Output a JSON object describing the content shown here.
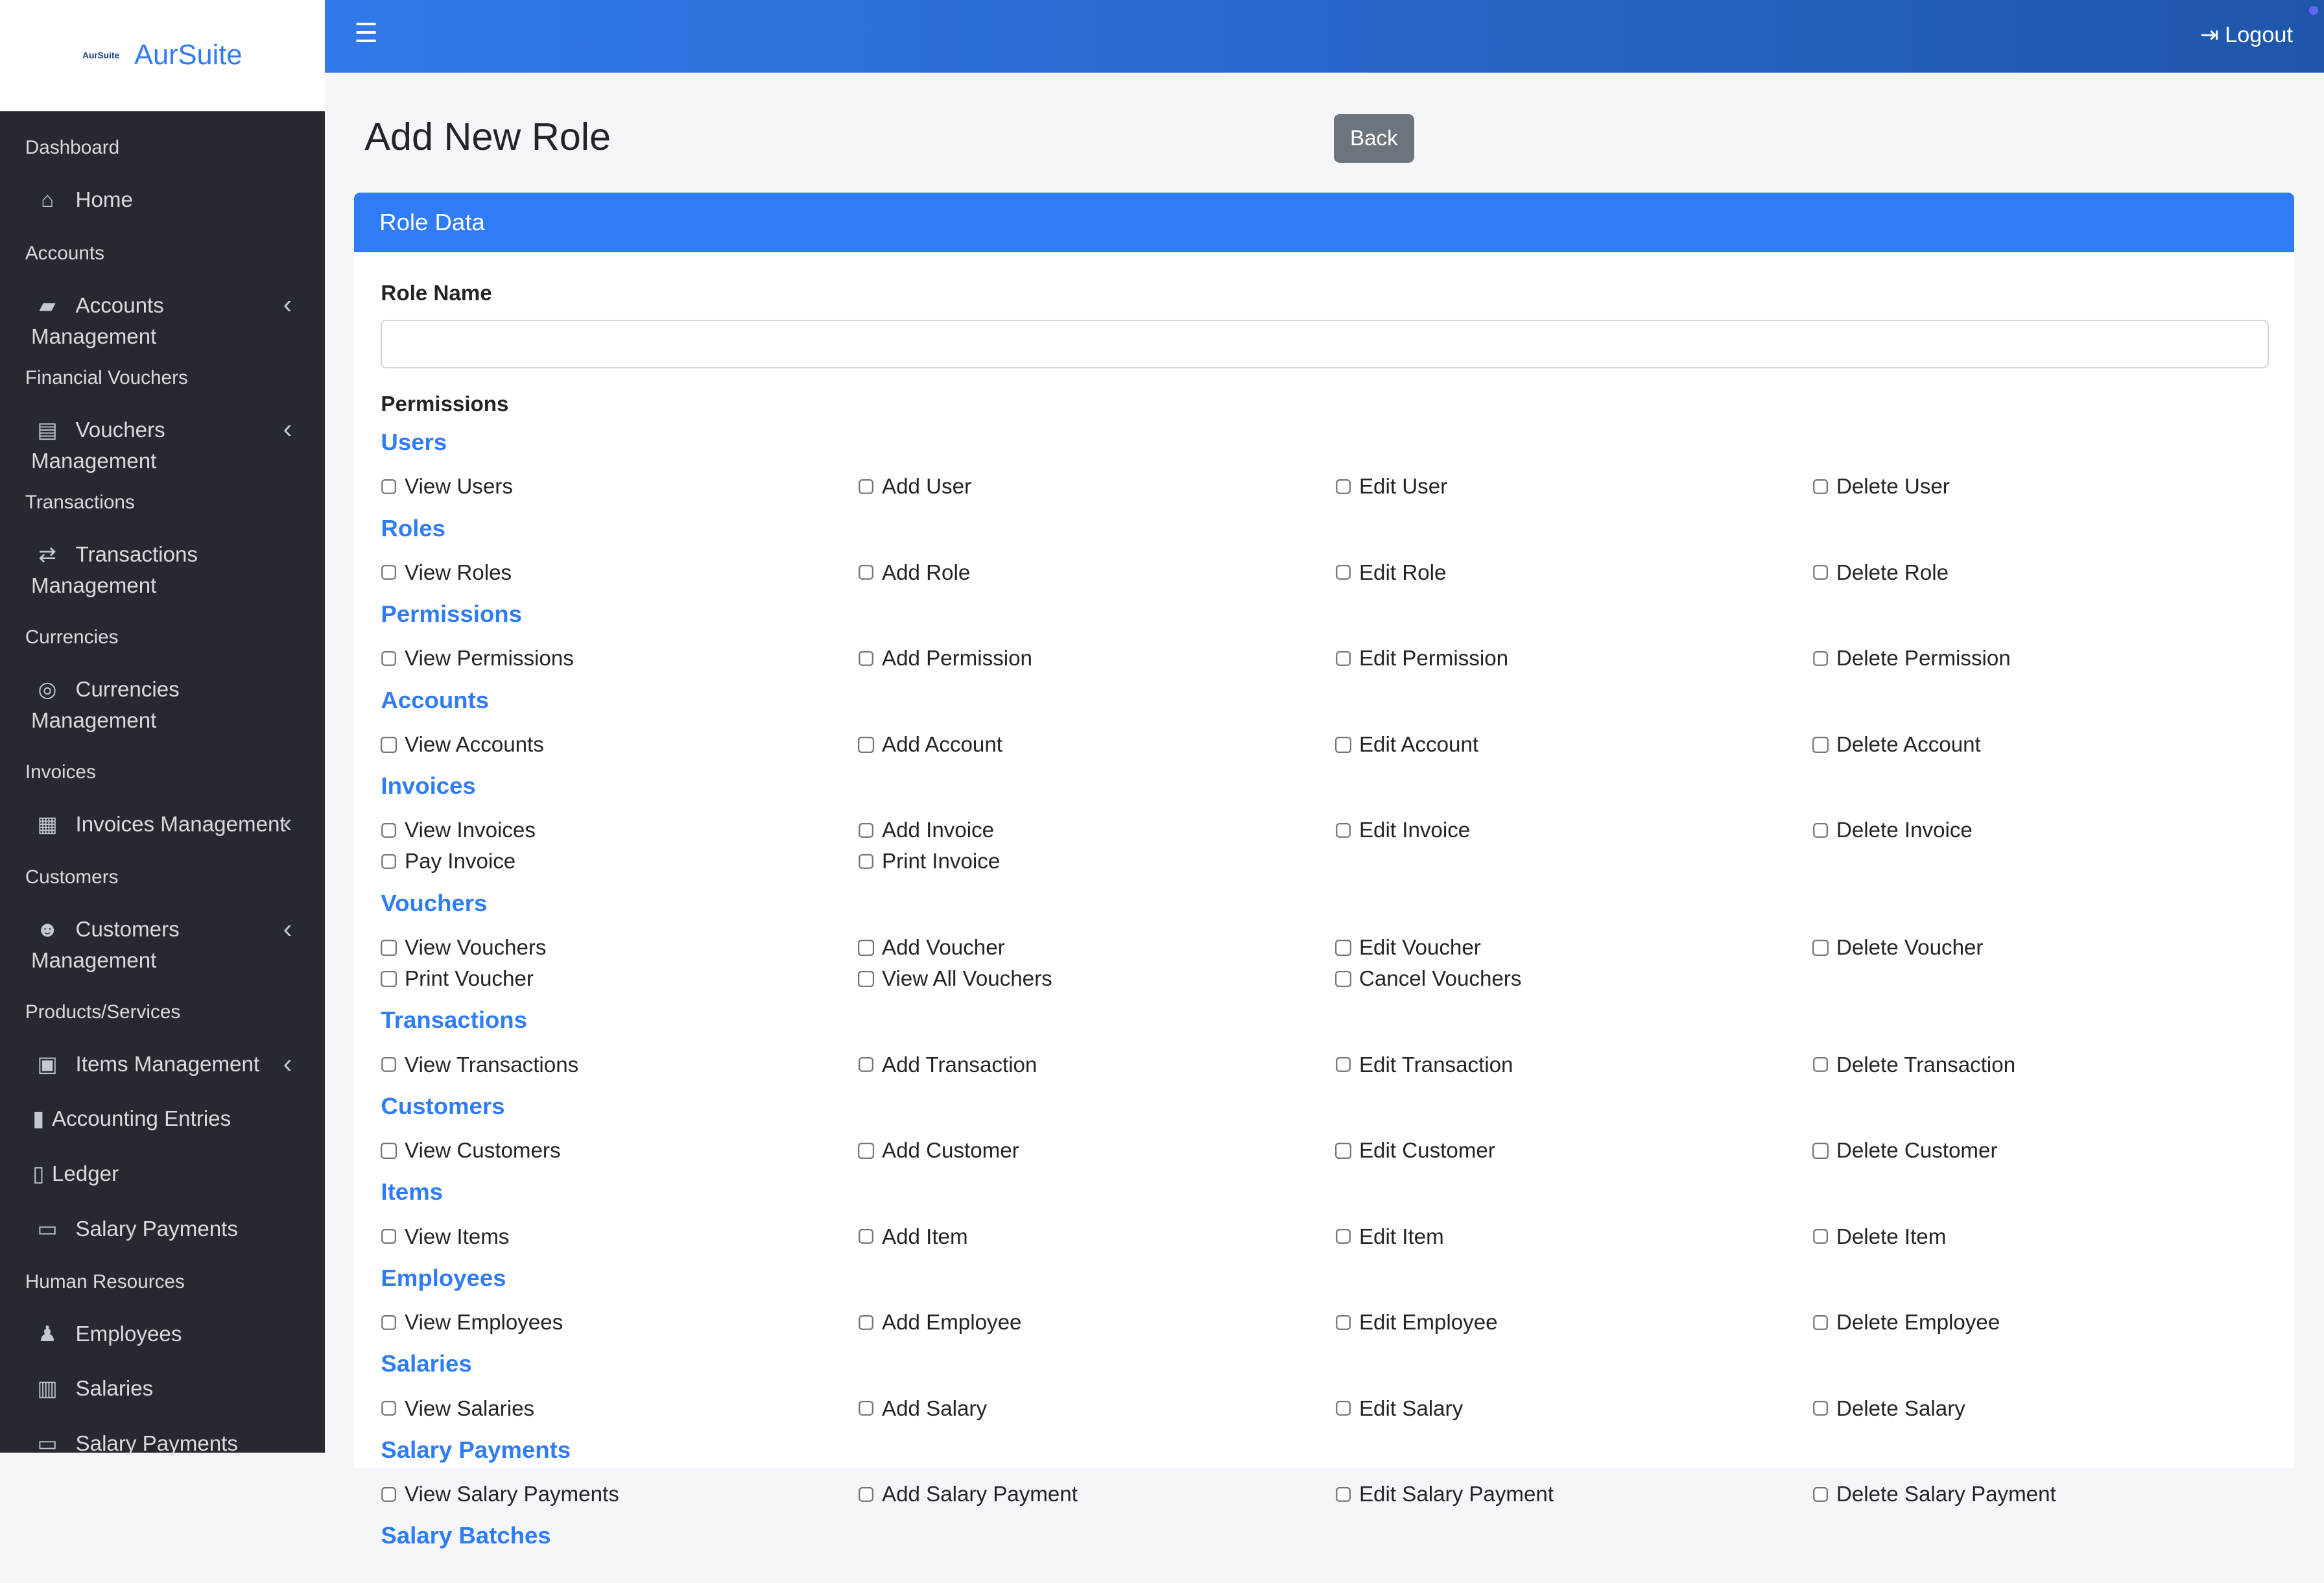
{
  "brand": {
    "logo_text": "AurSuite",
    "name": "AurSuite"
  },
  "colors": {
    "primary": "#2f7cf6",
    "sidebar": "#262a30",
    "back_button": "#6c757d"
  },
  "sidebar": [
    {
      "section": "Dashboard",
      "items": [
        {
          "label": "Home",
          "icon": "home-icon",
          "glyph": "⌂"
        }
      ]
    },
    {
      "section": "Accounts",
      "items": [
        {
          "label": "Accounts Management",
          "icon": "folder-open-icon",
          "glyph": "▰",
          "chevron": true
        }
      ]
    },
    {
      "section": "Financial Vouchers",
      "items": [
        {
          "label": "Vouchers Management",
          "icon": "file-icon",
          "glyph": "▤",
          "chevron": true
        }
      ]
    },
    {
      "section": "Transactions",
      "items": [
        {
          "label": "Transactions Management",
          "icon": "exchange-icon",
          "glyph": "⇄",
          "two": true
        }
      ]
    },
    {
      "section": "Currencies",
      "items": [
        {
          "label": "Currencies Management",
          "icon": "coins-icon",
          "glyph": "◎",
          "two": true
        }
      ]
    },
    {
      "section": "Invoices",
      "items": [
        {
          "label": "Invoices Management",
          "icon": "receipt-icon",
          "glyph": "▦",
          "chevron": true
        }
      ]
    },
    {
      "section": "Customers",
      "items": [
        {
          "label": "Customers Management",
          "icon": "users-icon",
          "glyph": "☻",
          "two": true,
          "chevron": true
        }
      ]
    },
    {
      "section": "Products/Services",
      "items": [
        {
          "label": "Items Management",
          "icon": "box-open-icon",
          "glyph": "▣",
          "chevron": true
        },
        {
          "label": "Accounting Entries",
          "icon": "book-icon",
          "glyph": "▮",
          "tight": true
        },
        {
          "label": "Ledger",
          "icon": "book-open-icon",
          "glyph": "▯",
          "tight": true
        },
        {
          "label": "Salary Payments",
          "icon": "money-check-icon",
          "glyph": "▭"
        }
      ]
    },
    {
      "section": "Human Resources",
      "items": [
        {
          "label": "Employees",
          "icon": "user-tie-icon",
          "glyph": "♟"
        },
        {
          "label": "Salaries",
          "icon": "money-bill-icon",
          "glyph": "▥"
        },
        {
          "label": "Salary Payments",
          "icon": "money-check-icon",
          "glyph": "▭"
        }
      ]
    }
  ],
  "topbar": {
    "logout": "Logout"
  },
  "page": {
    "title": "Add New Role",
    "back": "Back"
  },
  "card": {
    "header": "Role Data",
    "role_name_label": "Role Name",
    "role_name_value": "",
    "permissions_label": "Permissions"
  },
  "permissions": [
    {
      "group": "Users",
      "rows": [
        [
          "View Users",
          "Add User",
          "Edit User",
          "Delete User"
        ]
      ]
    },
    {
      "group": "Roles",
      "rows": [
        [
          "View Roles",
          "Add Role",
          "Edit Role",
          "Delete Role"
        ]
      ]
    },
    {
      "group": "Permissions",
      "rows": [
        [
          "View Permissions",
          "Add Permission",
          "Edit Permission",
          "Delete Permission"
        ]
      ]
    },
    {
      "group": "Accounts",
      "rows": [
        [
          "View Accounts",
          "Add Account",
          "Edit Account",
          "Delete Account"
        ]
      ]
    },
    {
      "group": "Invoices",
      "rows": [
        [
          "View Invoices",
          "Add Invoice",
          "Edit Invoice",
          "Delete Invoice"
        ],
        [
          "Pay Invoice",
          "Print Invoice"
        ]
      ]
    },
    {
      "group": "Vouchers",
      "rows": [
        [
          "View Vouchers",
          "Add Voucher",
          "Edit Voucher",
          "Delete Voucher"
        ],
        [
          "Print Voucher",
          "View All Vouchers",
          "Cancel Vouchers"
        ]
      ]
    },
    {
      "group": "Transactions",
      "rows": [
        [
          "View Transactions",
          "Add Transaction",
          "Edit Transaction",
          "Delete Transaction"
        ]
      ]
    },
    {
      "group": "Customers",
      "rows": [
        [
          "View Customers",
          "Add Customer",
          "Edit Customer",
          "Delete Customer"
        ]
      ]
    },
    {
      "group": "Items",
      "rows": [
        [
          "View Items",
          "Add Item",
          "Edit Item",
          "Delete Item"
        ]
      ]
    },
    {
      "group": "Employees",
      "rows": [
        [
          "View Employees",
          "Add Employee",
          "Edit Employee",
          "Delete Employee"
        ]
      ]
    },
    {
      "group": "Salaries",
      "rows": [
        [
          "View Salaries",
          "Add Salary",
          "Edit Salary",
          "Delete Salary"
        ]
      ]
    },
    {
      "group": "Salary Payments",
      "rows": [
        [
          "View Salary Payments",
          "Add Salary Payment",
          "Edit Salary Payment",
          "Delete Salary Payment"
        ]
      ]
    },
    {
      "group": "Salary Batches",
      "rows": []
    }
  ]
}
